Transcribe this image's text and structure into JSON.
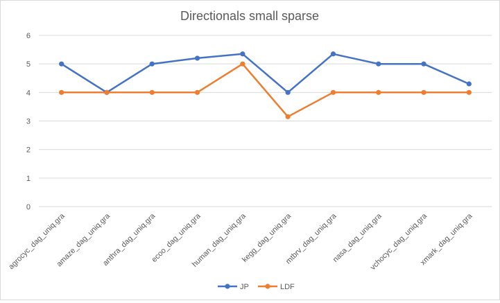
{
  "chart_data": {
    "type": "line",
    "title": "Directionals small sparse",
    "xlabel": "",
    "ylabel": "",
    "ylim": [
      0,
      6
    ],
    "yticks": [
      0,
      1,
      2,
      3,
      4,
      5,
      6
    ],
    "grid": true,
    "legend_position": "bottom",
    "categories": [
      "agrocyc_dag_uniq.gra",
      "amaze_dag_uniq.gra",
      "anthra_dag_uniq.gra",
      "ecoo_dag_uniq.gra",
      "human_dag_uniq.gra",
      "kegg_dag_uniq.gra",
      "mtbrv_dag_uniq.gra",
      "nasa_dag_uniq.gra",
      "vchocyc_dag_uniq.gra",
      "xmark_dag_uniq.gra"
    ],
    "series": [
      {
        "name": "JP",
        "color": "#4472C4",
        "values": [
          5,
          4,
          5,
          5.2,
          5.35,
          4,
          5.35,
          5,
          5,
          4.3
        ]
      },
      {
        "name": "LDF",
        "color": "#ED7D31",
        "values": [
          4,
          4,
          4,
          4,
          5,
          3.15,
          4,
          4,
          4,
          4
        ]
      }
    ],
    "gridline_color": "#d9d9d9",
    "text_color": "#595959"
  }
}
